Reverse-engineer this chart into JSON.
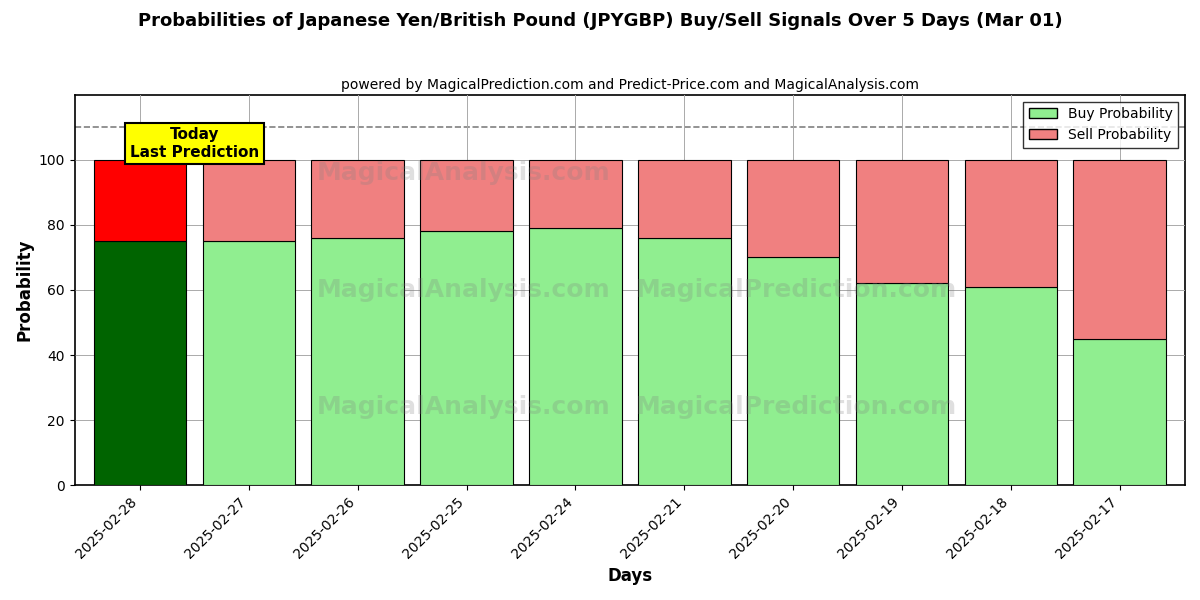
{
  "title": "Probabilities of Japanese Yen/British Pound (JPYGBP) Buy/Sell Signals Over 5 Days (Mar 01)",
  "subtitle": "powered by MagicalPrediction.com and Predict-Price.com and MagicalAnalysis.com",
  "xlabel": "Days",
  "ylabel": "Probability",
  "categories": [
    "2025-02-28",
    "2025-02-27",
    "2025-02-26",
    "2025-02-25",
    "2025-02-24",
    "2025-02-21",
    "2025-02-20",
    "2025-02-19",
    "2025-02-18",
    "2025-02-17"
  ],
  "buy_values": [
    75,
    75,
    76,
    78,
    79,
    76,
    70,
    62,
    61,
    45
  ],
  "sell_values": [
    25,
    25,
    24,
    22,
    21,
    24,
    30,
    38,
    39,
    55
  ],
  "buy_color_today": "#006400",
  "sell_color_today": "#ff0000",
  "buy_color_normal": "#90EE90",
  "sell_color_normal": "#F08080",
  "bar_edge_color": "#000000",
  "ylim": [
    0,
    120
  ],
  "yticks": [
    0,
    20,
    40,
    60,
    80,
    100
  ],
  "dashed_line_y": 110,
  "today_label_line1": "Today",
  "today_label_line2": "Last Prediction",
  "today_box_color": "#FFFF00",
  "legend_buy_label": "Buy Probability",
  "legend_sell_label": "Sell Probability",
  "watermark_texts": [
    "MagicalAnalysis.com",
    "MagicalPrediction.com"
  ],
  "background_color": "#ffffff",
  "grid_color": "#aaaaaa"
}
